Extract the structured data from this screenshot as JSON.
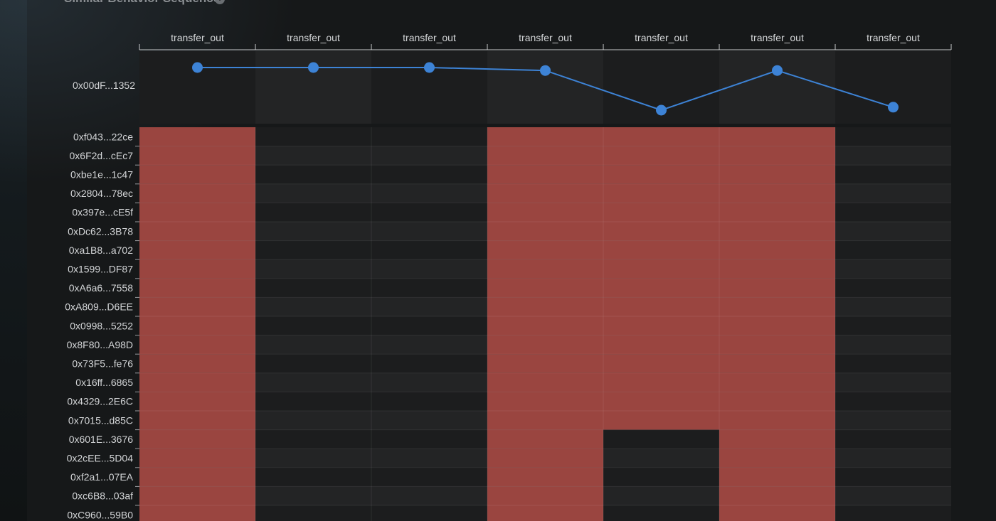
{
  "section": {
    "title": "Similar Behavior Sequence",
    "info_icon": "info-circle-icon"
  },
  "chart_data": {
    "type": "heatmap",
    "columns": [
      "transfer_out",
      "transfer_out",
      "transfer_out",
      "transfer_out",
      "transfer_out",
      "transfer_out",
      "transfer_out"
    ],
    "line": {
      "address": "0x00dF...1352",
      "values": [
        1.0,
        1.0,
        1.0,
        0.93,
        0.0,
        0.93,
        0.07
      ],
      "color": "#3d83d6"
    },
    "rows": [
      "0xf043...22ce",
      "0x6F2d...cEc7",
      "0xbe1e...1c47",
      "0x2804...78ec",
      "0x397e...cE5f",
      "0xDc62...3B78",
      "0xa1B8...a702",
      "0x1599...DF87",
      "0xA6a6...7558",
      "0xA809...D6EE",
      "0x0998...5252",
      "0x8F80...A98D",
      "0x73F5...fe76",
      "0x16ff...6865",
      "0x4329...2E6C",
      "0x7015...d85C",
      "0x601E...3676",
      "0x2cEE...5D04",
      "0xf2a1...07EA",
      "0xc6B8...03af",
      "0xC960...59B0"
    ],
    "matrix": [
      [
        1,
        0,
        0,
        1,
        1,
        1,
        0
      ],
      [
        1,
        0,
        0,
        1,
        1,
        1,
        0
      ],
      [
        1,
        0,
        0,
        1,
        1,
        1,
        0
      ],
      [
        1,
        0,
        0,
        1,
        1,
        1,
        0
      ],
      [
        1,
        0,
        0,
        1,
        1,
        1,
        0
      ],
      [
        1,
        0,
        0,
        1,
        1,
        1,
        0
      ],
      [
        1,
        0,
        0,
        1,
        1,
        1,
        0
      ],
      [
        1,
        0,
        0,
        1,
        1,
        1,
        0
      ],
      [
        1,
        0,
        0,
        1,
        1,
        1,
        0
      ],
      [
        1,
        0,
        0,
        1,
        1,
        1,
        0
      ],
      [
        1,
        0,
        0,
        1,
        1,
        1,
        0
      ],
      [
        1,
        0,
        0,
        1,
        1,
        1,
        0
      ],
      [
        1,
        0,
        0,
        1,
        1,
        1,
        0
      ],
      [
        1,
        0,
        0,
        1,
        1,
        1,
        0
      ],
      [
        1,
        0,
        0,
        1,
        1,
        1,
        0
      ],
      [
        1,
        0,
        0,
        1,
        1,
        1,
        0
      ],
      [
        1,
        0,
        0,
        1,
        0,
        1,
        0
      ],
      [
        1,
        0,
        0,
        1,
        0,
        1,
        0
      ],
      [
        1,
        0,
        0,
        1,
        0,
        1,
        0
      ],
      [
        1,
        0,
        0,
        1,
        0,
        1,
        0
      ],
      [
        1,
        0,
        0,
        1,
        0,
        1,
        0
      ]
    ],
    "colors": {
      "active": "#9a4540",
      "inactive_a": "#1c1d1e",
      "inactive_b": "#232425"
    }
  }
}
